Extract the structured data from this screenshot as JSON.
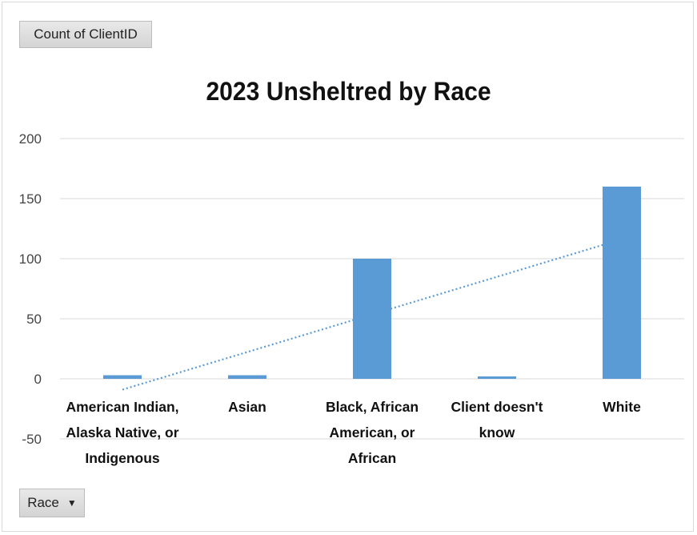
{
  "pivot": {
    "value_field_label": "Count  of ClientID",
    "axis_field_label": "Race",
    "axis_field_icon": "dropdown-arrow-icon"
  },
  "chart_data": {
    "type": "bar",
    "title": "2023 Unsheltred by Race",
    "xlabel": "",
    "ylabel": "",
    "ylim": [
      -50,
      200
    ],
    "yticks": [
      200,
      150,
      100,
      50,
      0,
      -50
    ],
    "grid": true,
    "categories": [
      "American Indian, Alaska Native, or Indigenous",
      "Asian",
      "Black, African American, or African",
      "Client doesn't know",
      "White"
    ],
    "category_lines": [
      [
        "American Indian,",
        "Alaska Native, or",
        "Indigenous"
      ],
      [
        "Asian"
      ],
      [
        "Black, African",
        "American, or",
        "African"
      ],
      [
        "Client doesn't",
        "know"
      ],
      [
        "White"
      ]
    ],
    "values": [
      3,
      3,
      100,
      2,
      160
    ],
    "bar_color": "#5b9bd5",
    "trendline": {
      "type": "linear",
      "style": "dotted",
      "color": "#5b9bd5"
    }
  }
}
